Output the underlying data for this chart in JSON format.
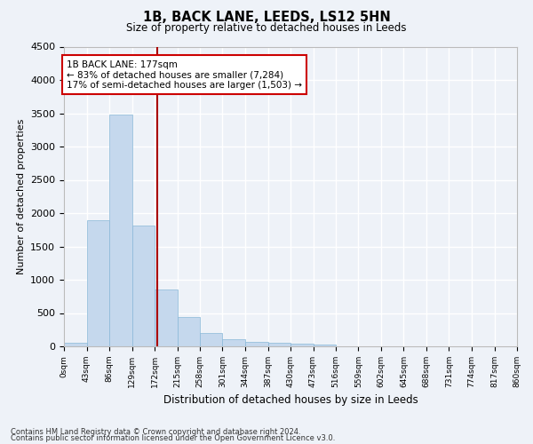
{
  "title": "1B, BACK LANE, LEEDS, LS12 5HN",
  "subtitle": "Size of property relative to detached houses in Leeds",
  "xlabel": "Distribution of detached houses by size in Leeds",
  "ylabel": "Number of detached properties",
  "footnote1": "Contains HM Land Registry data © Crown copyright and database right 2024.",
  "footnote2": "Contains public sector information licensed under the Open Government Licence v3.0.",
  "annotation_line1": "1B BACK LANE: 177sqm",
  "annotation_line2": "← 83% of detached houses are smaller (7,284)",
  "annotation_line3": "17% of semi-detached houses are larger (1,503) →",
  "bar_color": "#c5d8ed",
  "bar_edge_color": "#89b8d8",
  "property_line_color": "#aa0000",
  "annotation_box_edge_color": "#cc0000",
  "background_color": "#eef2f8",
  "grid_color": "#ffffff",
  "bin_labels": [
    "0sqm",
    "43sqm",
    "86sqm",
    "129sqm",
    "172sqm",
    "215sqm",
    "258sqm",
    "301sqm",
    "344sqm",
    "387sqm",
    "430sqm",
    "473sqm",
    "516sqm",
    "559sqm",
    "602sqm",
    "645sqm",
    "688sqm",
    "731sqm",
    "774sqm",
    "817sqm",
    "860sqm"
  ],
  "bin_edges": [
    0,
    43,
    86,
    129,
    172,
    215,
    258,
    301,
    344,
    387,
    430,
    473,
    516,
    559,
    602,
    645,
    688,
    731,
    774,
    817,
    860
  ],
  "bar_heights": [
    50,
    1900,
    3480,
    1820,
    860,
    440,
    195,
    105,
    70,
    55,
    45,
    25,
    0,
    0,
    0,
    0,
    0,
    0,
    0,
    0
  ],
  "property_size": 177,
  "ylim": [
    0,
    4500
  ],
  "yticks": [
    0,
    500,
    1000,
    1500,
    2000,
    2500,
    3000,
    3500,
    4000,
    4500
  ]
}
